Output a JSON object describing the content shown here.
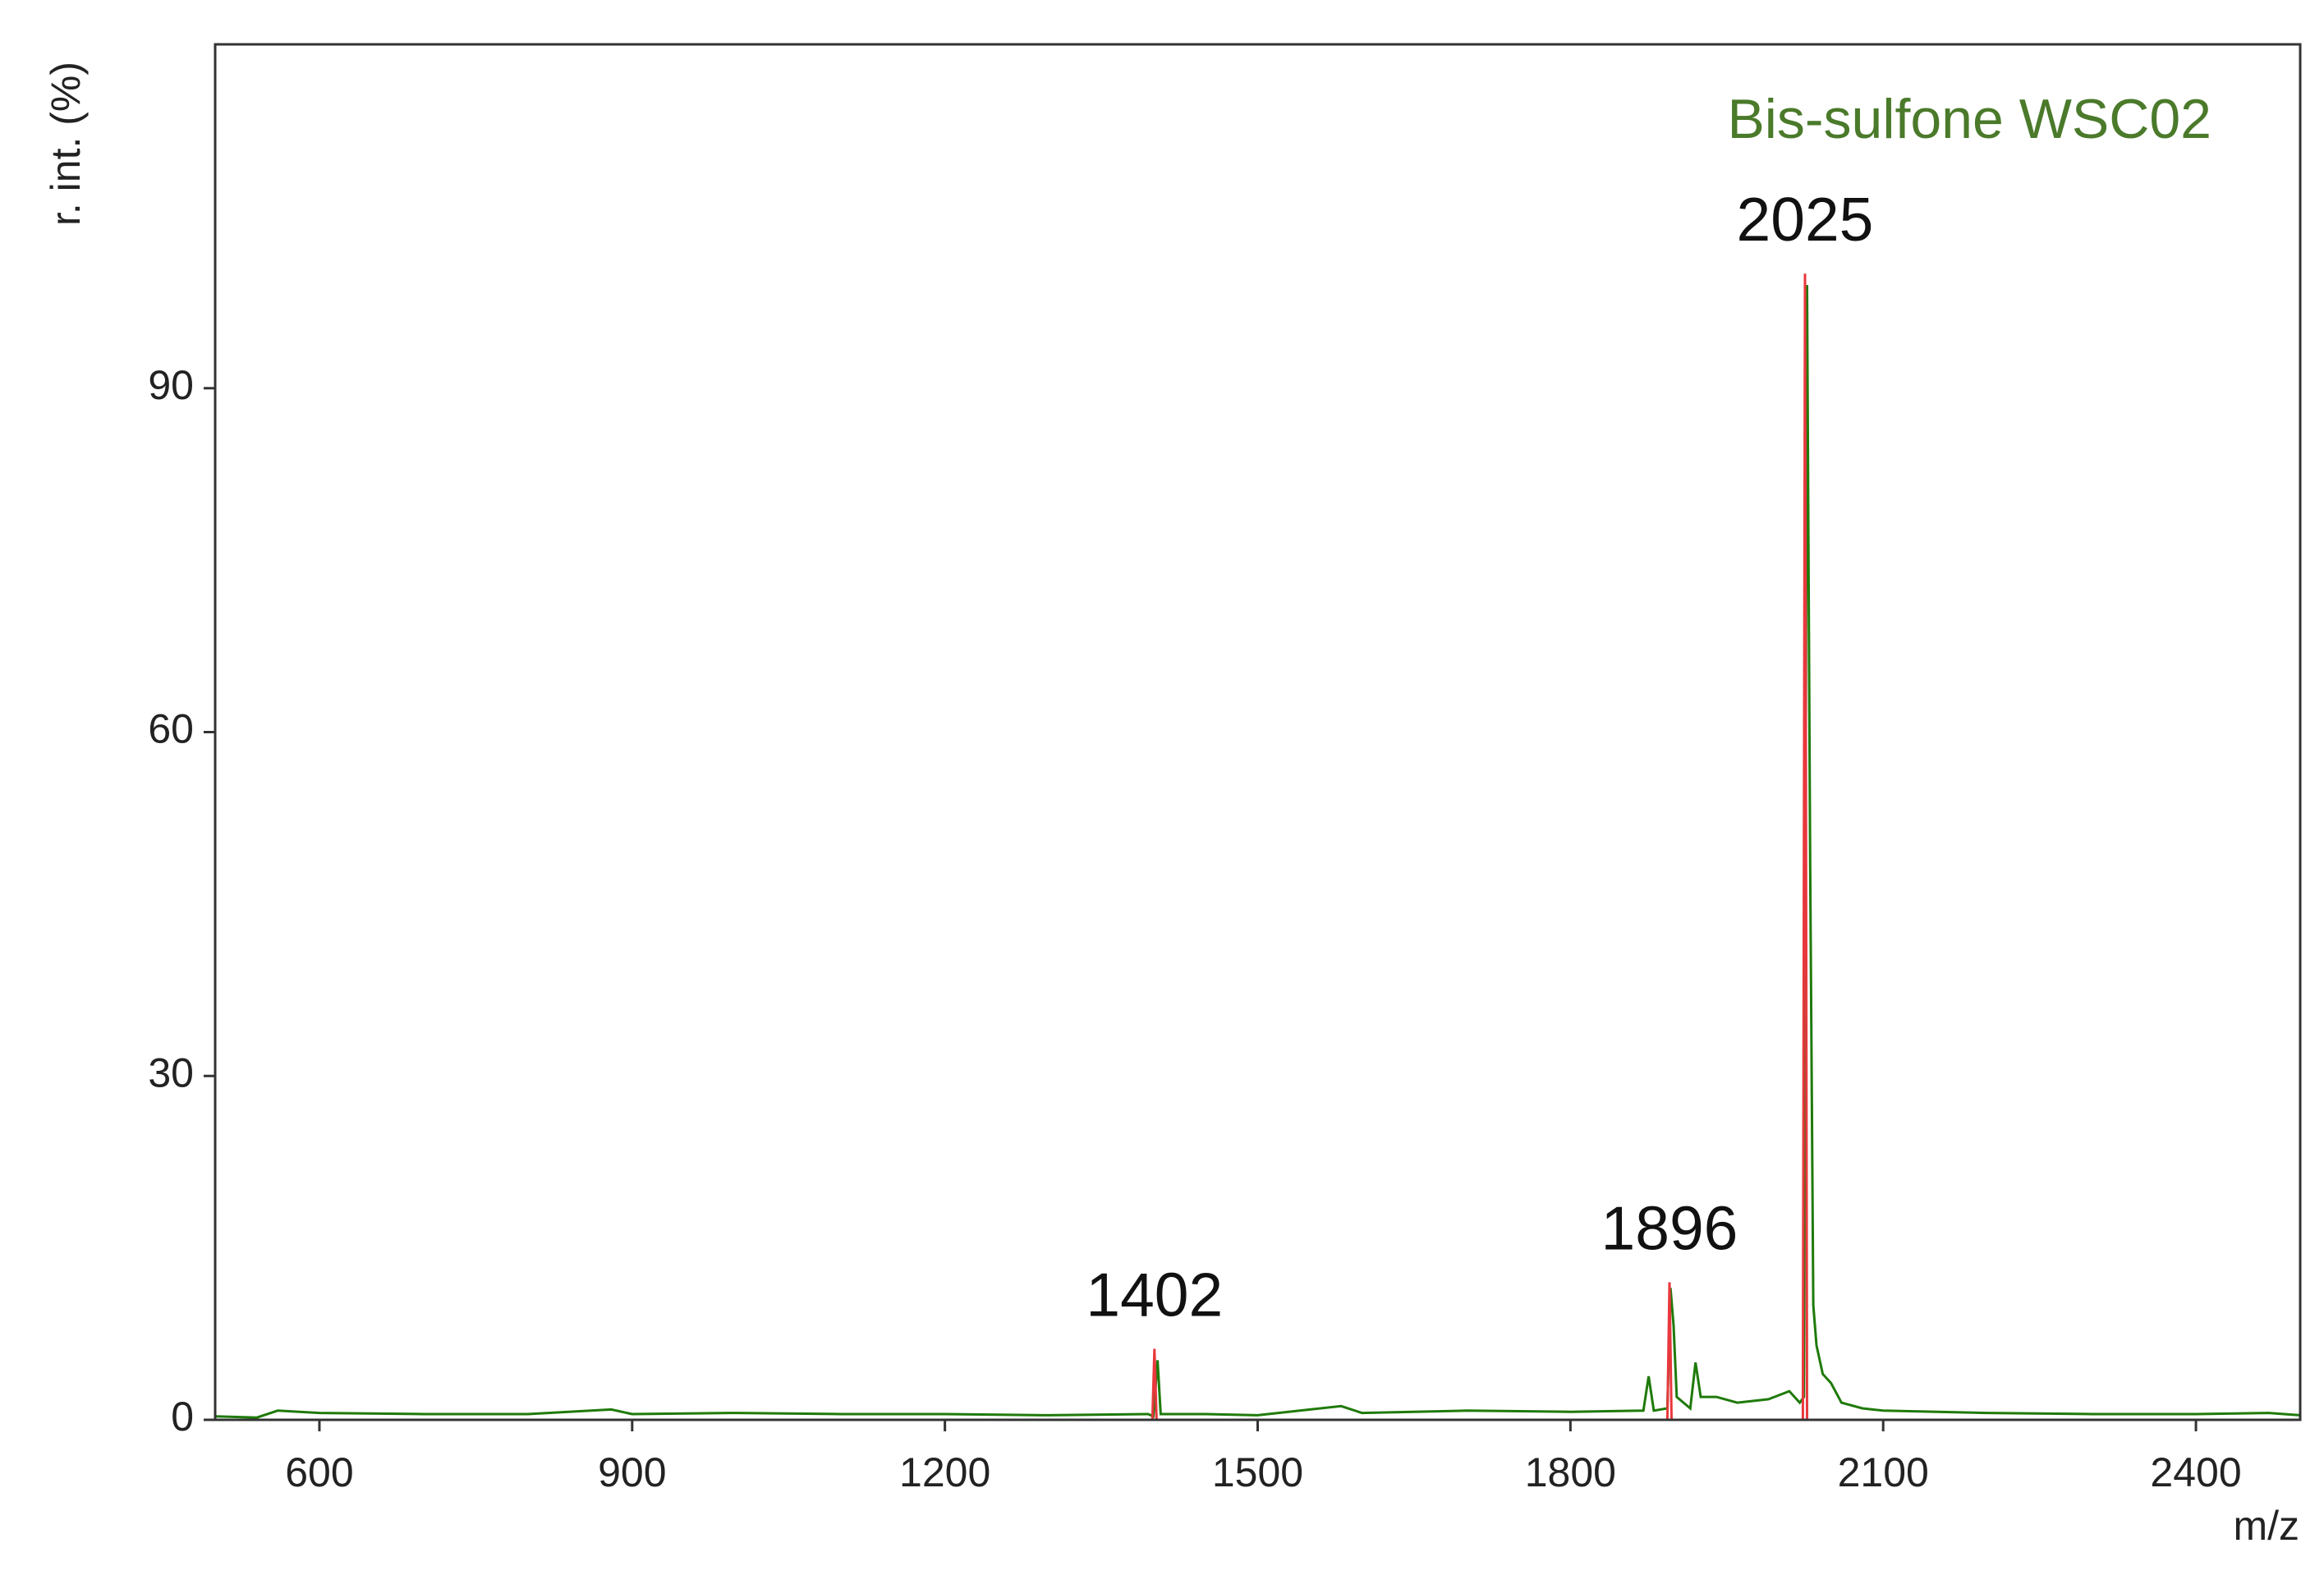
{
  "chart_data": {
    "type": "line",
    "title": "Bis-sulfone WSC02",
    "x_label": "m/z",
    "y_label": "r. int. (%)",
    "xlim": [
      500,
      2500
    ],
    "ylim": [
      0,
      120
    ],
    "xticks": [
      600,
      900,
      1200,
      1500,
      1800,
      2100,
      2400
    ],
    "yticks": [
      0,
      30,
      60,
      90
    ],
    "annotations": [
      "1402",
      "1896",
      "2025"
    ],
    "series": [
      {
        "color": "#1f7a0a",
        "x": [
          500,
          540,
          560,
          600,
          700,
          800,
          880,
          900,
          1000,
          1100,
          1200,
          1300,
          1395,
          1400,
          1404,
          1407,
          1450,
          1500,
          1580,
          1600,
          1700,
          1800,
          1870,
          1875,
          1880,
          1893,
          1896,
          1899,
          1902,
          1915,
          1920,
          1925,
          1940,
          1960,
          1990,
          2010,
          2020,
          2024,
          2027,
          2030,
          2033,
          2036,
          2042,
          2050,
          2060,
          2080,
          2100,
          2200,
          2300,
          2400,
          2470,
          2500
        ],
        "values": [
          0.3,
          0.2,
          0.8,
          0.6,
          0.5,
          0.5,
          0.9,
          0.5,
          0.6,
          0.5,
          0.5,
          0.4,
          0.5,
          0.3,
          5.2,
          0.5,
          0.5,
          0.4,
          1.2,
          0.6,
          0.8,
          0.7,
          0.8,
          3.8,
          0.8,
          1.0,
          11.5,
          8.2,
          2.0,
          1.0,
          5.0,
          2.0,
          2.0,
          1.5,
          1.8,
          2.5,
          1.5,
          2.0,
          99,
          48.5,
          10,
          6.5,
          4.0,
          3.2,
          1.5,
          1.0,
          0.8,
          0.6,
          0.5,
          0.5,
          0.6,
          0.4
        ]
      },
      {
        "color": "#e8383d",
        "x": [
          1399,
          1401,
          1403,
          1893,
          1895,
          1897,
          2023,
          2025,
          2027
        ],
        "values": [
          0,
          6.2,
          0,
          0,
          12,
          0,
          0,
          100,
          0
        ]
      }
    ]
  }
}
